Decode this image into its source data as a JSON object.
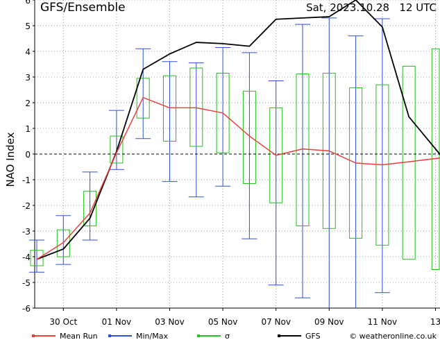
{
  "header": {
    "title": "GFS/Ensemble",
    "run_label": "Sat, 2023.10.28   12 UTC"
  },
  "legend": [
    {
      "label": "Mean Run",
      "color": "#e8413c"
    },
    {
      "label": "Min/Max",
      "color": "#2f4fd8"
    },
    {
      "label": "σ",
      "color": "#22c01c"
    },
    {
      "label": "GFS",
      "color": "#000000"
    }
  ],
  "credit": "© weatheronline.co.uk",
  "chart_data": {
    "type": "line",
    "ylabel": "NAO Index",
    "ylim": [
      -6,
      6
    ],
    "yticks": [
      -6,
      -5,
      -4,
      -3,
      -2,
      -1,
      0,
      1,
      2,
      3,
      4,
      5,
      6
    ],
    "xlim": [
      0,
      15.6
    ],
    "xticks": [
      {
        "x": 1,
        "label": "30 Oct"
      },
      {
        "x": 3,
        "label": "01 Nov"
      },
      {
        "x": 5,
        "label": "03 Nov"
      },
      {
        "x": 7,
        "label": "05 Nov"
      },
      {
        "x": 9,
        "label": "07 Nov"
      },
      {
        "x": 11,
        "label": "09 Nov"
      },
      {
        "x": 13,
        "label": "11 Nov"
      },
      {
        "x": 15,
        "label": "13"
      }
    ],
    "grid": true,
    "zero_line": true,
    "series": [
      {
        "name": "Mean Run",
        "color": "#e8413c",
        "x": [
          0,
          1,
          2,
          3,
          4,
          5,
          6,
          7,
          8,
          9,
          10,
          11,
          12,
          13,
          14,
          15.6
        ],
        "y": [
          -4.1,
          -3.45,
          -2.3,
          0.05,
          2.2,
          1.8,
          1.8,
          1.6,
          0.7,
          -0.05,
          0.2,
          0.12,
          -0.35,
          -0.42,
          -0.3,
          -0.1
        ]
      },
      {
        "name": "GFS",
        "color": "#000000",
        "x": [
          0,
          1,
          2,
          3,
          4,
          5,
          6,
          7,
          8,
          9,
          10,
          11,
          12,
          13,
          14,
          15.6
        ],
        "y": [
          -4.1,
          -3.7,
          -2.5,
          0.1,
          3.3,
          3.9,
          4.35,
          4.3,
          4.2,
          5.25,
          5.3,
          5.35,
          6.0,
          4.95,
          1.45,
          -0.55
        ]
      }
    ],
    "ensemble_boxes": [
      {
        "x": 0,
        "sd_low": -4.35,
        "sd_high": -3.75,
        "min": -4.6,
        "max": -3.35
      },
      {
        "x": 1,
        "sd_low": -4.0,
        "sd_high": -2.95,
        "min": -4.3,
        "max": -2.4
      },
      {
        "x": 2,
        "sd_low": -2.8,
        "sd_high": -1.45,
        "min": -3.35,
        "max": -0.7
      },
      {
        "x": 3,
        "sd_low": -0.35,
        "sd_high": 0.7,
        "min": -0.6,
        "max": 1.7
      },
      {
        "x": 4,
        "sd_low": 1.4,
        "sd_high": 2.95,
        "min": 0.6,
        "max": 4.1
      },
      {
        "x": 5,
        "sd_low": 0.5,
        "sd_high": 3.05,
        "min": -1.07,
        "max": 3.6
      },
      {
        "x": 6,
        "sd_low": 0.3,
        "sd_high": 3.35,
        "min": -1.67,
        "max": 3.55
      },
      {
        "x": 7,
        "sd_low": 0.05,
        "sd_high": 3.15,
        "min": -1.25,
        "max": 4.15
      },
      {
        "x": 8,
        "sd_low": -1.15,
        "sd_high": 2.45,
        "min": -3.3,
        "max": 3.95
      },
      {
        "x": 9,
        "sd_low": -1.9,
        "sd_high": 1.8,
        "min": -5.1,
        "max": 2.85
      },
      {
        "x": 10,
        "sd_low": -2.8,
        "sd_high": 3.12,
        "min": -5.6,
        "max": 5.05
      },
      {
        "x": 11,
        "sd_low": -2.9,
        "sd_high": 3.15,
        "min": -6.0,
        "max": 5.3
      },
      {
        "x": 12,
        "sd_low": -3.28,
        "sd_high": 2.58,
        "min": -6.0,
        "max": 4.6
      },
      {
        "x": 13,
        "sd_low": -3.55,
        "sd_high": 2.7,
        "min": -5.4,
        "max": 5.27
      },
      {
        "x": 14,
        "sd_low": -4.1,
        "sd_high": 3.42,
        "min": null,
        "max": null
      },
      {
        "x": 15.1,
        "sd_low": -4.5,
        "sd_high": 4.1,
        "min": null,
        "max": null
      }
    ]
  }
}
